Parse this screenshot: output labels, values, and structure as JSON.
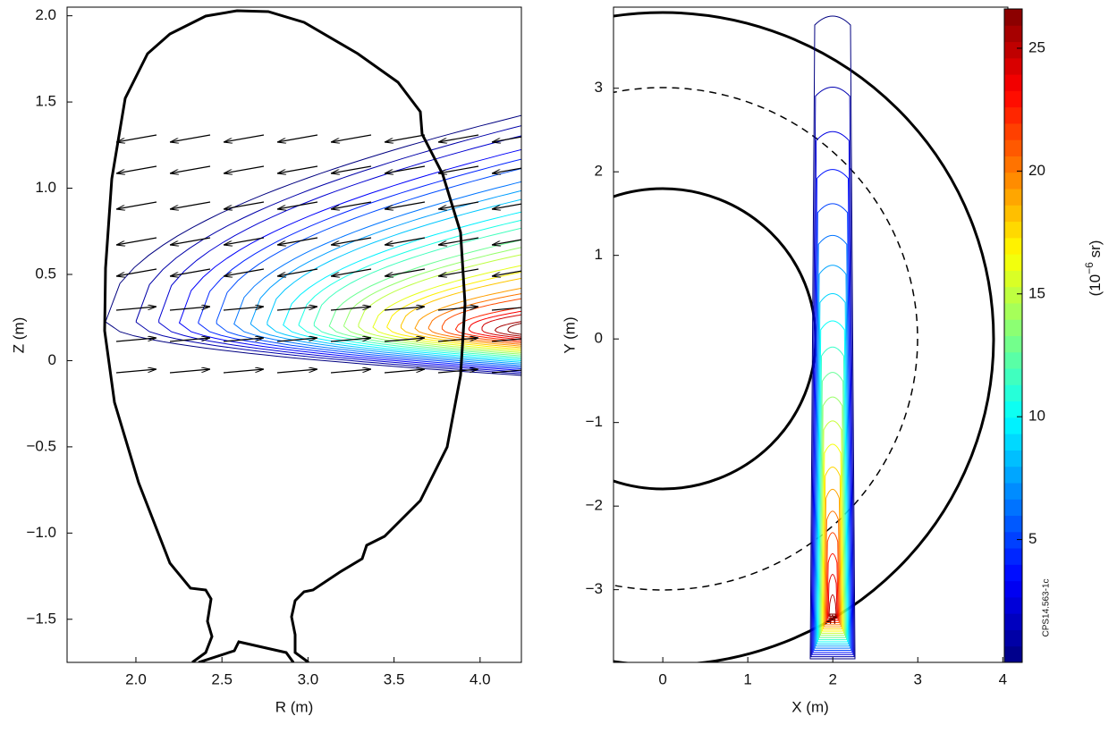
{
  "chart_data": [
    {
      "type": "contour",
      "xlabel": "R (m)",
      "ylabel": "Z (m)",
      "xlim": [
        1.6,
        4.24
      ],
      "ylim": [
        -1.75,
        2.05
      ],
      "xticks": [
        {
          "value": 2,
          "label": "2.0"
        },
        2.5,
        {
          "value": 3,
          "label": "3.0"
        },
        3.5,
        {
          "value": 4,
          "label": "4.0"
        }
      ],
      "yticks": [
        {
          "value": -1.5,
          "label": "−1.5"
        },
        {
          "value": -1,
          "label": "−1.0"
        },
        {
          "value": -0.5,
          "label": "−0.5"
        },
        0,
        0.5,
        {
          "value": 1,
          "label": "1.0"
        },
        1.5,
        {
          "value": 2,
          "label": "2.0"
        }
      ]
    },
    {
      "type": "contour",
      "xlabel": "X (m)",
      "ylabel": "Y (m)",
      "xlim": [
        -0.58,
        4.06
      ],
      "ylim": [
        -3.87,
        3.97
      ],
      "xticks": [
        0,
        1,
        2,
        3,
        4
      ],
      "yticks": [
        {
          "value": -3,
          "label": "−3"
        },
        {
          "value": -2,
          "label": "−2"
        },
        {
          "value": -1,
          "label": "−1"
        },
        0,
        1,
        2,
        3
      ],
      "annotation": "CPS14.563-1c",
      "colorbar": {
        "lim": [
          0,
          26.6
        ],
        "ticks": [
          5,
          10,
          15,
          20,
          25
        ],
        "label": {
          "prefix": "(10",
          "exponent": "−6",
          "suffix": " sr)"
        }
      }
    }
  ]
}
